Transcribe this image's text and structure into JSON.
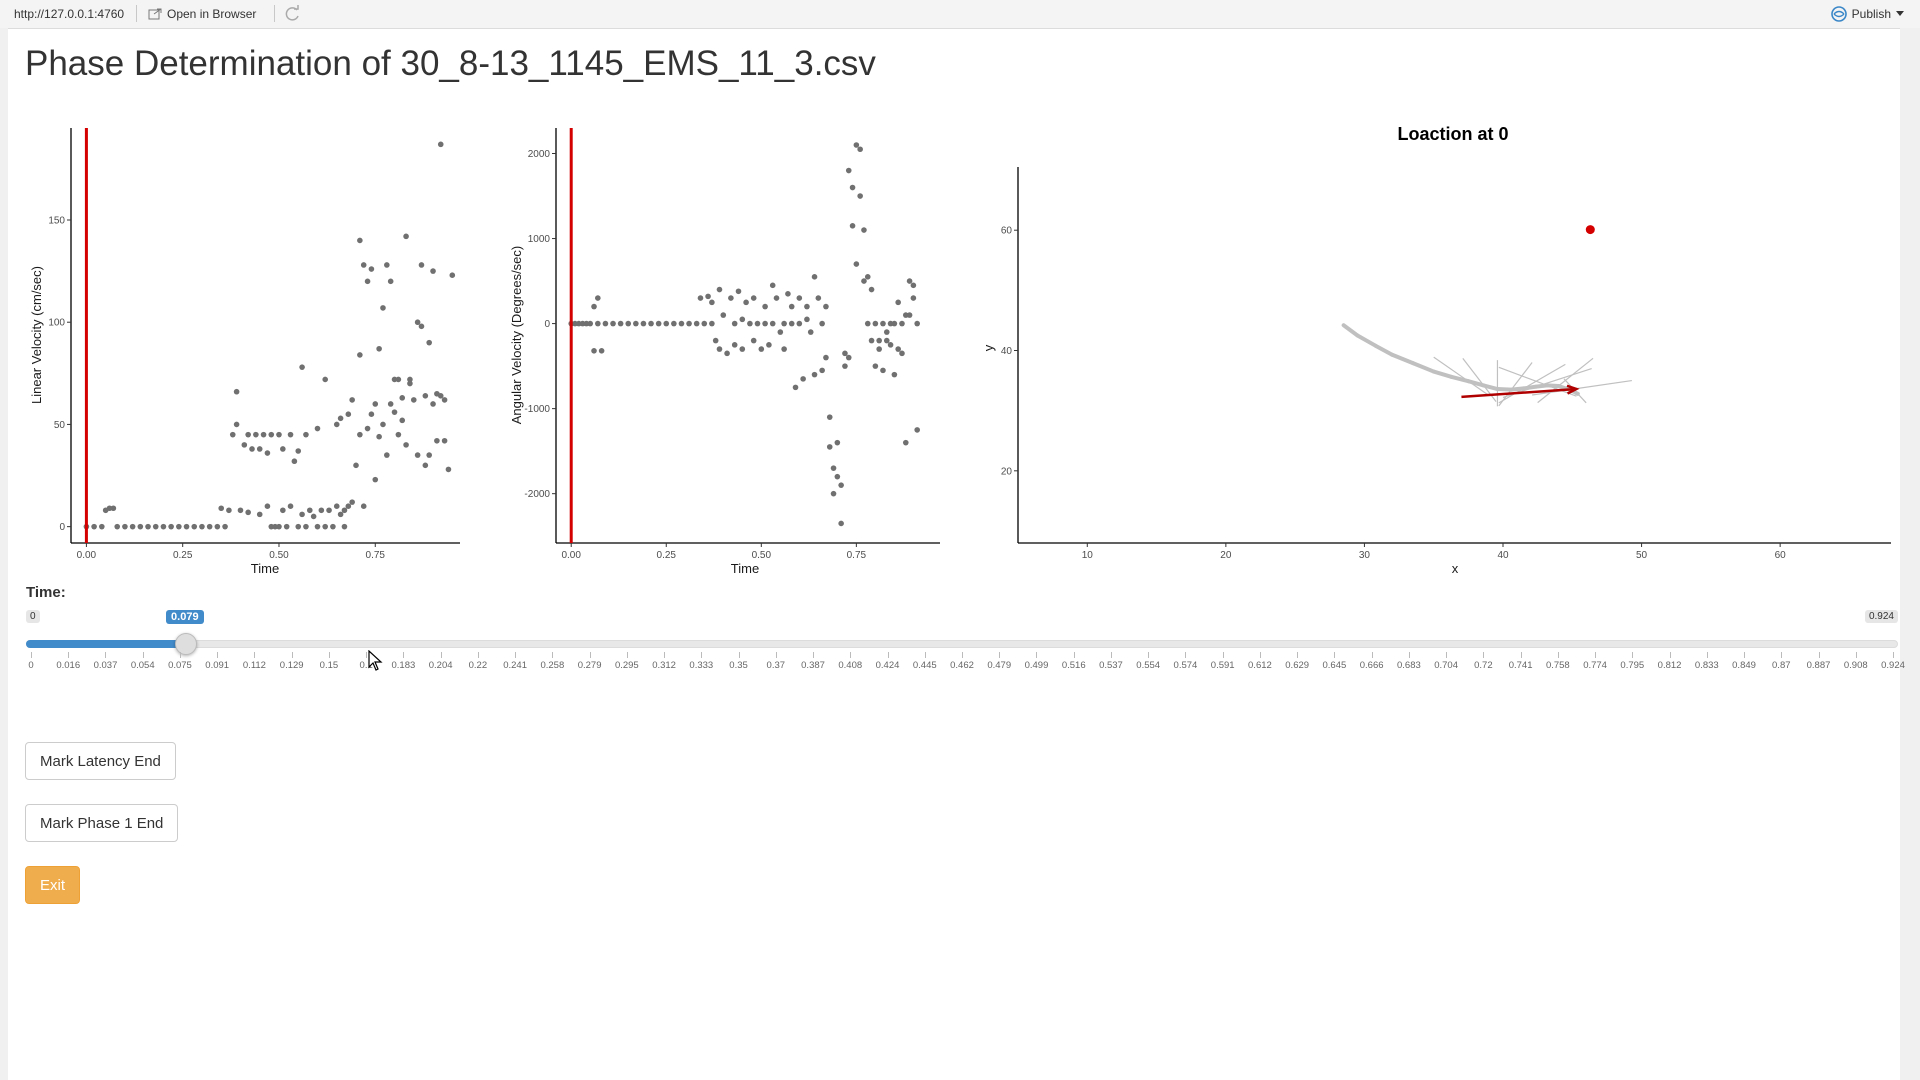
{
  "browser": {
    "url": "http://127.0.0.1:4760",
    "open_in_browser": "Open in Browser",
    "publish": "Publish"
  },
  "page_title": "Phase Determination of 30_8-13_1145_EMS_11_3.csv",
  "time_control": {
    "label": "Time:",
    "min_label": "0",
    "max_label": "0.924",
    "value_label": "0.079",
    "min": 0,
    "max": 0.924,
    "value": 0.079,
    "grid_labels": [
      "0",
      "0.016",
      "0.037",
      "0.054",
      "0.075",
      "0.091",
      "0.112",
      "0.129",
      "0.15",
      "0.1",
      "0.183",
      "0.204",
      "0.22",
      "0.241",
      "0.258",
      "0.279",
      "0.295",
      "0.312",
      "0.333",
      "0.35",
      "0.37",
      "0.387",
      "0.408",
      "0.424",
      "0.445",
      "0.462",
      "0.479",
      "0.499",
      "0.516",
      "0.537",
      "0.554",
      "0.574",
      "0.591",
      "0.612",
      "0.629",
      "0.645",
      "0.666",
      "0.683",
      "0.704",
      "0.72",
      "0.741",
      "0.758",
      "0.774",
      "0.795",
      "0.812",
      "0.833",
      "0.849",
      "0.87",
      "0.887",
      "0.908",
      "0.924"
    ]
  },
  "buttons": {
    "mark_latency": "Mark Latency End",
    "mark_phase1": "Mark Phase 1 End",
    "exit": "Exit"
  },
  "colors": {
    "marker": "#d40000",
    "points": "#707070",
    "arrows": "#c0c0c0",
    "slider_accent": "#428bca",
    "exit": "#f0ad4e"
  },
  "chart_data": [
    {
      "type": "scatter",
      "title": "",
      "xlabel": "Time",
      "ylabel": "Linear Velocity (cm/sec)",
      "xlim": [
        -0.04,
        0.97
      ],
      "ylim": [
        -8,
        195
      ],
      "xticks": [
        0.0,
        0.25,
        0.5,
        0.75
      ],
      "xtick_labels": [
        "0.00",
        "0.25",
        "0.50",
        "0.75"
      ],
      "yticks": [
        0,
        50,
        100,
        150
      ],
      "ytick_labels": [
        "0",
        "50",
        "100",
        "150"
      ],
      "vline": 0.0,
      "points": [
        [
          0.0,
          0
        ],
        [
          0.02,
          0
        ],
        [
          0.04,
          0
        ],
        [
          0.05,
          8
        ],
        [
          0.06,
          9
        ],
        [
          0.07,
          9
        ],
        [
          0.08,
          0
        ],
        [
          0.1,
          0
        ],
        [
          0.12,
          0
        ],
        [
          0.14,
          0
        ],
        [
          0.16,
          0
        ],
        [
          0.18,
          0
        ],
        [
          0.2,
          0
        ],
        [
          0.22,
          0
        ],
        [
          0.24,
          0
        ],
        [
          0.26,
          0
        ],
        [
          0.28,
          0
        ],
        [
          0.3,
          0
        ],
        [
          0.32,
          0
        ],
        [
          0.34,
          0
        ],
        [
          0.36,
          0
        ],
        [
          0.35,
          9
        ],
        [
          0.37,
          8
        ],
        [
          0.38,
          45
        ],
        [
          0.39,
          50
        ],
        [
          0.39,
          66
        ],
        [
          0.4,
          8
        ],
        [
          0.41,
          40
        ],
        [
          0.42,
          45
        ],
        [
          0.42,
          7
        ],
        [
          0.43,
          38
        ],
        [
          0.44,
          45
        ],
        [
          0.45,
          6
        ],
        [
          0.45,
          38
        ],
        [
          0.46,
          45
        ],
        [
          0.47,
          10
        ],
        [
          0.47,
          36
        ],
        [
          0.48,
          45
        ],
        [
          0.48,
          0
        ],
        [
          0.49,
          0
        ],
        [
          0.5,
          45
        ],
        [
          0.5,
          0
        ],
        [
          0.51,
          8
        ],
        [
          0.51,
          38
        ],
        [
          0.52,
          0
        ],
        [
          0.53,
          45
        ],
        [
          0.53,
          10
        ],
        [
          0.54,
          32
        ],
        [
          0.55,
          37
        ],
        [
          0.55,
          0
        ],
        [
          0.56,
          78
        ],
        [
          0.56,
          6
        ],
        [
          0.57,
          45
        ],
        [
          0.57,
          0
        ],
        [
          0.58,
          8
        ],
        [
          0.59,
          5
        ],
        [
          0.6,
          0
        ],
        [
          0.6,
          48
        ],
        [
          0.61,
          8
        ],
        [
          0.62,
          0
        ],
        [
          0.62,
          72
        ],
        [
          0.63,
          8
        ],
        [
          0.64,
          0
        ],
        [
          0.65,
          10
        ],
        [
          0.65,
          50
        ],
        [
          0.66,
          53
        ],
        [
          0.66,
          6
        ],
        [
          0.67,
          8
        ],
        [
          0.67,
          0
        ],
        [
          0.68,
          55
        ],
        [
          0.68,
          10
        ],
        [
          0.69,
          12
        ],
        [
          0.69,
          62
        ],
        [
          0.7,
          30
        ],
        [
          0.71,
          84
        ],
        [
          0.71,
          140
        ],
        [
          0.71,
          45
        ],
        [
          0.72,
          128
        ],
        [
          0.72,
          10
        ],
        [
          0.73,
          120
        ],
        [
          0.73,
          48
        ],
        [
          0.74,
          55
        ],
        [
          0.74,
          126
        ],
        [
          0.75,
          23
        ],
        [
          0.75,
          60
        ],
        [
          0.76,
          44
        ],
        [
          0.76,
          87
        ],
        [
          0.77,
          50
        ],
        [
          0.77,
          107
        ],
        [
          0.78,
          128
        ],
        [
          0.78,
          35
        ],
        [
          0.79,
          60
        ],
        [
          0.79,
          120
        ],
        [
          0.8,
          56
        ],
        [
          0.8,
          72
        ],
        [
          0.81,
          45
        ],
        [
          0.81,
          72
        ],
        [
          0.82,
          52
        ],
        [
          0.82,
          63
        ],
        [
          0.83,
          142
        ],
        [
          0.83,
          40
        ],
        [
          0.84,
          70
        ],
        [
          0.84,
          72
        ],
        [
          0.85,
          62
        ],
        [
          0.86,
          100
        ],
        [
          0.86,
          35
        ],
        [
          0.87,
          128
        ],
        [
          0.87,
          98
        ],
        [
          0.88,
          30
        ],
        [
          0.88,
          64
        ],
        [
          0.89,
          90
        ],
        [
          0.89,
          35
        ],
        [
          0.9,
          125
        ],
        [
          0.9,
          60
        ],
        [
          0.91,
          65
        ],
        [
          0.91,
          42
        ],
        [
          0.92,
          187
        ],
        [
          0.92,
          64
        ],
        [
          0.93,
          42
        ],
        [
          0.93,
          62
        ],
        [
          0.94,
          28
        ],
        [
          0.95,
          123
        ]
      ]
    },
    {
      "type": "scatter",
      "title": "",
      "xlabel": "Time",
      "ylabel": "Angular Velocity (Degrees/sec)",
      "xlim": [
        -0.04,
        0.97
      ],
      "ylim": [
        -2580,
        2300
      ],
      "xticks": [
        0.0,
        0.25,
        0.5,
        0.75
      ],
      "xtick_labels": [
        "0.00",
        "0.25",
        "0.50",
        "0.75"
      ],
      "yticks": [
        -2000,
        -1000,
        0,
        1000,
        2000
      ],
      "ytick_labels": [
        "-2000",
        "-1000",
        "0",
        "1000",
        "2000"
      ],
      "vline": 0.0,
      "points": [
        [
          0.0,
          0
        ],
        [
          0.01,
          0
        ],
        [
          0.02,
          0
        ],
        [
          0.03,
          0
        ],
        [
          0.04,
          0
        ],
        [
          0.05,
          0
        ],
        [
          0.06,
          200
        ],
        [
          0.06,
          -320
        ],
        [
          0.07,
          300
        ],
        [
          0.08,
          -320
        ],
        [
          0.07,
          0
        ],
        [
          0.09,
          0
        ],
        [
          0.11,
          0
        ],
        [
          0.13,
          0
        ],
        [
          0.15,
          0
        ],
        [
          0.17,
          0
        ],
        [
          0.19,
          0
        ],
        [
          0.21,
          0
        ],
        [
          0.23,
          0
        ],
        [
          0.25,
          0
        ],
        [
          0.27,
          0
        ],
        [
          0.29,
          0
        ],
        [
          0.31,
          0
        ],
        [
          0.33,
          0
        ],
        [
          0.35,
          0
        ],
        [
          0.37,
          0
        ],
        [
          0.34,
          300
        ],
        [
          0.36,
          320
        ],
        [
          0.37,
          250
        ],
        [
          0.38,
          -200
        ],
        [
          0.39,
          400
        ],
        [
          0.39,
          -300
        ],
        [
          0.4,
          100
        ],
        [
          0.41,
          -350
        ],
        [
          0.42,
          300
        ],
        [
          0.43,
          -250
        ],
        [
          0.43,
          0
        ],
        [
          0.44,
          380
        ],
        [
          0.45,
          50
        ],
        [
          0.45,
          -300
        ],
        [
          0.46,
          250
        ],
        [
          0.47,
          0
        ],
        [
          0.48,
          -200
        ],
        [
          0.48,
          300
        ],
        [
          0.49,
          0
        ],
        [
          0.5,
          -300
        ],
        [
          0.51,
          0
        ],
        [
          0.51,
          200
        ],
        [
          0.52,
          -250
        ],
        [
          0.53,
          450
        ],
        [
          0.53,
          0
        ],
        [
          0.54,
          300
        ],
        [
          0.55,
          -100
        ],
        [
          0.56,
          -300
        ],
        [
          0.56,
          0
        ],
        [
          0.57,
          350
        ],
        [
          0.58,
          0
        ],
        [
          0.58,
          200
        ],
        [
          0.59,
          -750
        ],
        [
          0.6,
          300
        ],
        [
          0.6,
          0
        ],
        [
          0.61,
          -650
        ],
        [
          0.62,
          50
        ],
        [
          0.62,
          200
        ],
        [
          0.63,
          -100
        ],
        [
          0.64,
          -600
        ],
        [
          0.64,
          550
        ],
        [
          0.65,
          300
        ],
        [
          0.66,
          -550
        ],
        [
          0.66,
          0
        ],
        [
          0.67,
          -400
        ],
        [
          0.67,
          200
        ],
        [
          0.68,
          -1100
        ],
        [
          0.68,
          -1450
        ],
        [
          0.69,
          -1700
        ],
        [
          0.69,
          -2000
        ],
        [
          0.7,
          -1800
        ],
        [
          0.7,
          -1400
        ],
        [
          0.71,
          -2350
        ],
        [
          0.71,
          -1900
        ],
        [
          0.72,
          -500
        ],
        [
          0.72,
          -350
        ],
        [
          0.73,
          -400
        ],
        [
          0.73,
          1800
        ],
        [
          0.74,
          1600
        ],
        [
          0.74,
          1150
        ],
        [
          0.75,
          2100
        ],
        [
          0.75,
          700
        ],
        [
          0.76,
          1500
        ],
        [
          0.76,
          2050
        ],
        [
          0.77,
          1100
        ],
        [
          0.77,
          500
        ],
        [
          0.78,
          550
        ],
        [
          0.78,
          0
        ],
        [
          0.79,
          400
        ],
        [
          0.79,
          -200
        ],
        [
          0.8,
          0
        ],
        [
          0.8,
          -500
        ],
        [
          0.81,
          -300
        ],
        [
          0.81,
          -200
        ],
        [
          0.82,
          -550
        ],
        [
          0.82,
          0
        ],
        [
          0.83,
          -100
        ],
        [
          0.83,
          -200
        ],
        [
          0.84,
          0
        ],
        [
          0.84,
          -250
        ],
        [
          0.85,
          0
        ],
        [
          0.85,
          -600
        ],
        [
          0.86,
          -300
        ],
        [
          0.86,
          250
        ],
        [
          0.87,
          0
        ],
        [
          0.87,
          -350
        ],
        [
          0.88,
          100
        ],
        [
          0.88,
          -1400
        ],
        [
          0.89,
          500
        ],
        [
          0.89,
          100
        ],
        [
          0.9,
          450
        ],
        [
          0.9,
          300
        ],
        [
          0.91,
          -1250
        ],
        [
          0.91,
          0
        ]
      ]
    },
    {
      "type": "quiver",
      "title": "Loaction at 0",
      "xlabel": "x",
      "ylabel": "y",
      "xlim": [
        5,
        68
      ],
      "ylim": [
        8,
        73
      ],
      "xticks": [
        10,
        20,
        30,
        40,
        50,
        60
      ],
      "xtick_labels": [
        "10",
        "20",
        "30",
        "40",
        "50",
        "60"
      ],
      "yticks": [
        20,
        40,
        60
      ],
      "ytick_labels": [
        "20",
        "40",
        "60"
      ],
      "highlight_point": [
        46.3,
        60.1
      ],
      "highlight_arrow": {
        "from": [
          37.0,
          32.3
        ],
        "to": [
          45.3,
          33.6
        ]
      },
      "trajectory": [
        [
          28.5,
          44.2
        ],
        [
          29.5,
          42.5
        ],
        [
          30.8,
          40.8
        ],
        [
          32.0,
          39.3
        ],
        [
          33.5,
          37.9
        ],
        [
          35.0,
          36.5
        ],
        [
          36.3,
          35.6
        ],
        [
          37.5,
          34.9
        ],
        [
          38.6,
          34.2
        ],
        [
          39.6,
          33.6
        ],
        [
          40.6,
          33.5
        ],
        [
          41.5,
          33.7
        ],
        [
          42.4,
          34.0
        ],
        [
          43.2,
          34.2
        ],
        [
          44.0,
          34.1
        ],
        [
          44.8,
          33.5
        ],
        [
          45.4,
          32.8
        ]
      ],
      "arrow_vectors": [
        [
          -2.5,
          4.0
        ],
        [
          -1.5,
          4.5
        ],
        [
          0,
          4.8
        ],
        [
          1.5,
          4.5
        ],
        [
          3.0,
          4.0
        ],
        [
          4.0,
          3.0
        ],
        [
          -3.5,
          3.0
        ],
        [
          2.5,
          4.6
        ],
        [
          4.5,
          1.5
        ],
        [
          -1.0,
          2.5
        ],
        [
          1.0,
          3.5
        ],
        [
          3.5,
          2.5
        ],
        [
          4.8,
          0.5
        ],
        [
          3.0,
          -0.8
        ],
        [
          -2.0,
          1.5
        ],
        [
          0.5,
          -1.5
        ],
        [
          2.0,
          -1.2
        ]
      ]
    }
  ]
}
